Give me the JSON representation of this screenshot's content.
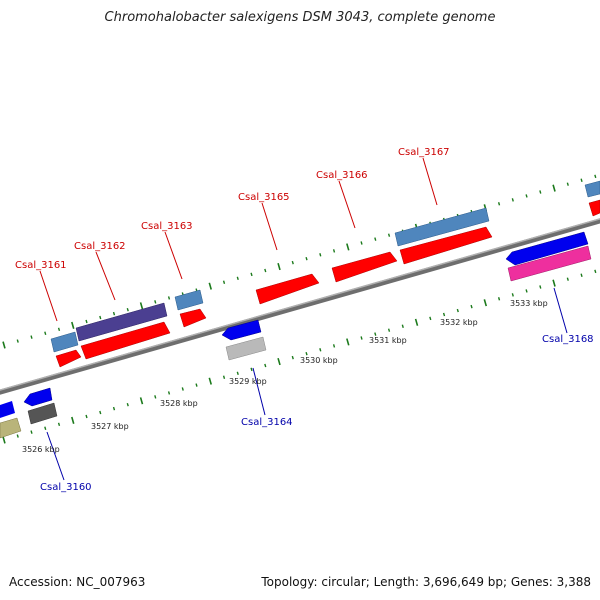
{
  "title": "Chromohalobacter salexigens DSM 3043, complete genome",
  "footer": {
    "accession": "Accession: NC_007963",
    "info": "Topology: circular; Length: 3,696,649 bp; Genes: 3,388"
  },
  "colors": {
    "forward_gene": "#ff0000",
    "cds_blue": "#4f86bd",
    "cds_purple": "#4b3f91",
    "reverse_blue": "#0000ee",
    "reverse_pink": "#ee2f9e",
    "reverse_gray": "#b9b9b9",
    "reverse_dark": "#555555",
    "reverse_olive": "#b9b47a",
    "backbone": "#8a8a8a",
    "tick": "#1c7a1c"
  },
  "top_labels": [
    {
      "name": "Csal_3161"
    },
    {
      "name": "Csal_3162"
    },
    {
      "name": "Csal_3163"
    },
    {
      "name": "Csal_3165"
    },
    {
      "name": "Csal_3166"
    },
    {
      "name": "Csal_3167"
    }
  ],
  "bottom_labels": [
    {
      "name": "Csal_3160"
    },
    {
      "name": "Csal_3164"
    },
    {
      "name": "Csal_3168"
    }
  ],
  "scale_labels": [
    "3526 kbp",
    "3527 kbp",
    "3528 kbp",
    "3529 kbp",
    "3530 kbp",
    "3531 kbp",
    "3532 kbp",
    "3533 kbp"
  ]
}
